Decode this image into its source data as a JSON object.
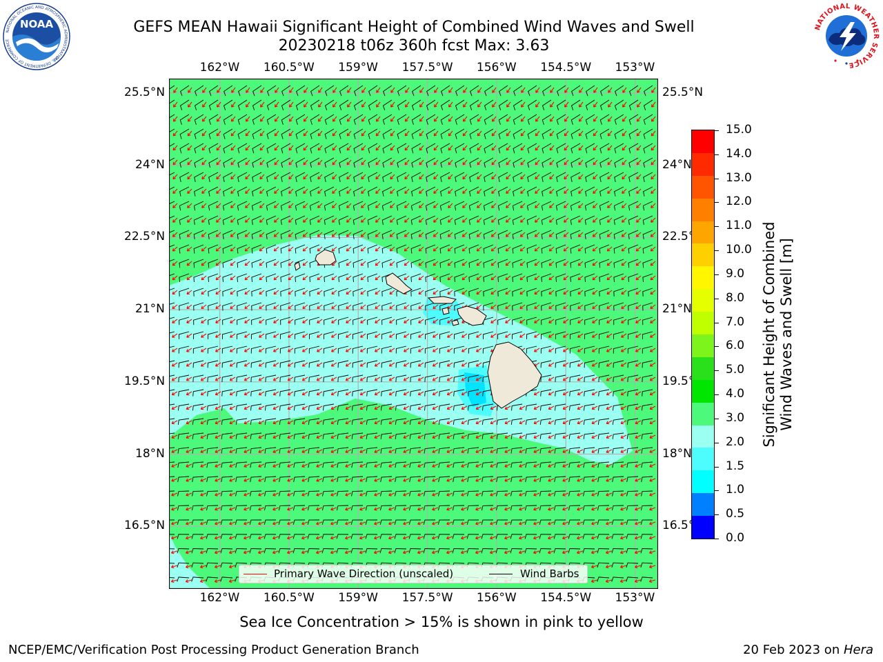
{
  "header": {
    "title_line1": "GEFS MEAN Hawaii Significant Height of Combined Wind Waves and Swell",
    "title_line2": "20230218 t06z 360h fcst   Max: 3.63"
  },
  "logos": {
    "left": "NOAA",
    "left_ring_text": "NATIONAL OCEANIC AND ATMOSPHERIC ADMINISTRATION",
    "left_ring_text_bottom": "U.S. DEPARTMENT OF COMMERCE",
    "right_ring_text": "NATIONAL WEATHER SERVICE"
  },
  "map": {
    "lon_ticks": [
      "162°W",
      "160.5°W",
      "159°W",
      "157.5°W",
      "156°W",
      "154.5°W",
      "153°W"
    ],
    "lat_ticks": [
      "25.5°N",
      "24°N",
      "22.5°N",
      "21°N",
      "19.5°N",
      "18°N",
      "16.5°N"
    ],
    "lon_values": [
      -162,
      -160.5,
      -159,
      -157.5,
      -156,
      -154.5,
      -153
    ],
    "lat_values": [
      25.5,
      24,
      22.5,
      21,
      19.5,
      18,
      16.5
    ],
    "extent": {
      "lon_min": -163.1,
      "lon_max": -152.5,
      "lat_min": 15.2,
      "lat_max": 25.8
    },
    "colors": {
      "height_3_to_4": "#4df97a",
      "height_2_to_3": "#9bfff2",
      "height_1_5_to_2": "#4dfdfd",
      "height_1_to_1_5": "#00e4ff",
      "land": "#efe9d9",
      "grid": "#b0b0b0",
      "wave_arrow": "#ff0000",
      "wind_barb": "#000000"
    },
    "legend": {
      "wave_direction": "Primary Wave Direction (unscaled)",
      "wind_barbs": "Wind Barbs"
    }
  },
  "colorbar": {
    "label_line1": "Significant Height of Combined",
    "label_line2": "Wind Waves and Swell [m]",
    "ticks": [
      "15.0",
      "14.0",
      "13.0",
      "12.0",
      "11.0",
      "10.0",
      "9.0",
      "8.0",
      "7.0",
      "6.0",
      "5.0",
      "4.0",
      "3.0",
      "2.0",
      "1.5",
      "1.0",
      "0.5",
      "0.0"
    ],
    "colors": [
      "#ff0000",
      "#ff2a00",
      "#ff5500",
      "#ff7f00",
      "#ffa500",
      "#ffd000",
      "#fff600",
      "#e6ff00",
      "#c0ff00",
      "#7df51c",
      "#29e01a",
      "#00e600",
      "#4df97a",
      "#9bfff2",
      "#4dfdfd",
      "#00ffff",
      "#0080ff",
      "#0000ff"
    ]
  },
  "footer": {
    "note": "Sea Ice Concentration > 15% is shown in pink to yellow",
    "credit_left": "NCEP/EMC/Verification Post Processing Product Generation Branch",
    "credit_date": "20 Feb 2023 on ",
    "credit_machine": "Hera"
  }
}
